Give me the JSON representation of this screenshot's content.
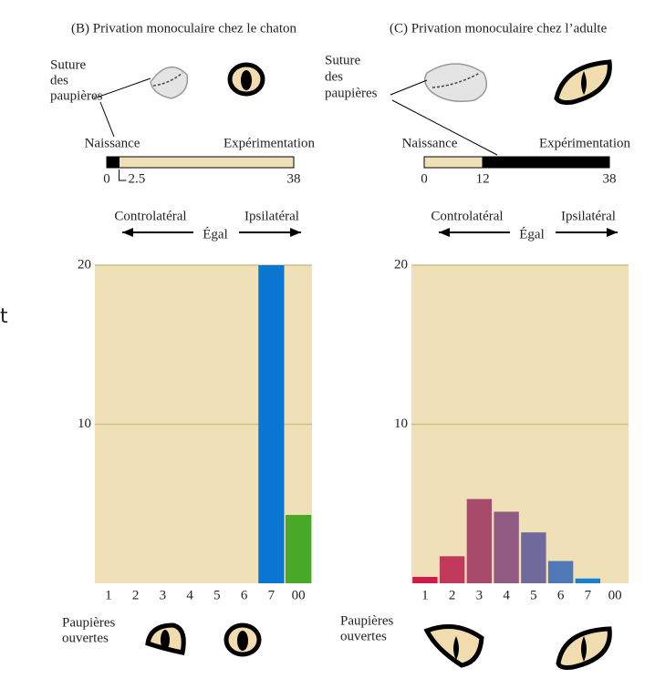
{
  "edge_text": "t",
  "chart_data": [
    {
      "type": "bar",
      "title": "(B)  Privation monoculaire chez le chaton",
      "suture_label": [
        "Suture",
        "des",
        "paupières"
      ],
      "timeline": {
        "start_label": "Naissance",
        "end_label": "Expérimentation",
        "ticks": [
          0,
          2.5,
          38
        ],
        "segment_colors": [
          "#000000",
          "#f0e0b8"
        ]
      },
      "direction_labels": {
        "left": "Controlatéral",
        "middle": "Égal",
        "right": "Ipsilatéral"
      },
      "categories": [
        "1",
        "2",
        "3",
        "4",
        "5",
        "6",
        "7",
        "00"
      ],
      "values": [
        0,
        0,
        0,
        0,
        0,
        0,
        20,
        4.3
      ],
      "colors": [
        "#d0184a",
        "#c03a5c",
        "#a84a6c",
        "#905a82",
        "#706a9c",
        "#5078b4",
        "#0a78d2",
        "#4aa828"
      ],
      "ylim": [
        0,
        20
      ],
      "yticks": [
        10,
        20
      ],
      "grid": true,
      "plot_color": "#f0e0b8",
      "eye_label": [
        "Paupières",
        "ouvertes"
      ]
    },
    {
      "type": "bar",
      "title": "(C)  Privation monoculaire chez l’adulte",
      "suture_label": [
        "Suture",
        "des",
        "paupières"
      ],
      "timeline": {
        "start_label": "Naissance",
        "end_label": "Expérimentation",
        "ticks": [
          0,
          12,
          38
        ],
        "segment_colors": [
          "#f0e0b8",
          "#000000"
        ]
      },
      "direction_labels": {
        "left": "Controlatéral",
        "middle": "Égal",
        "right": "Ipsilatéral"
      },
      "categories": [
        "1",
        "2",
        "3",
        "4",
        "5",
        "6",
        "7",
        "00"
      ],
      "values": [
        0.4,
        1.7,
        5.3,
        4.5,
        3.2,
        1.4,
        0.3,
        0
      ],
      "colors": [
        "#d0184a",
        "#c03a5c",
        "#a84a6c",
        "#905a82",
        "#706a9c",
        "#5078b4",
        "#1a80d0",
        "#4aa828"
      ],
      "ylim": [
        0,
        20
      ],
      "yticks": [
        10,
        20
      ],
      "grid": true,
      "plot_color": "#f0e0b8",
      "eye_label": [
        "Paupières",
        "ouvertes"
      ]
    }
  ]
}
